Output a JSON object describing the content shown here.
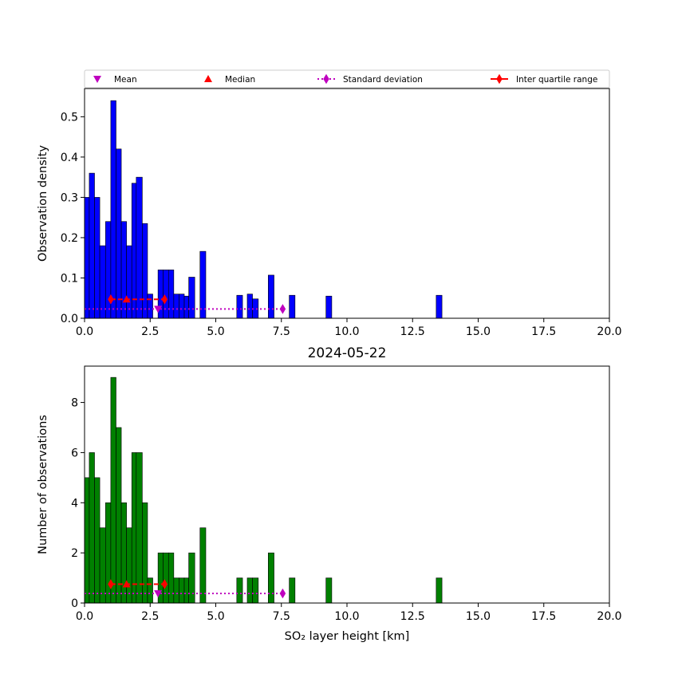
{
  "figure": {
    "title": "2024-05-22",
    "xlabel": "SO₂ layer height [km]"
  },
  "legend": [
    {
      "label": "Mean",
      "marker": "triangle-down",
      "color": "#bf00bf",
      "line": "none"
    },
    {
      "label": "Median",
      "marker": "triangle-up",
      "color": "#ff0000",
      "line": "none"
    },
    {
      "label": "Standard deviation",
      "marker": "diamond",
      "color": "#bf00bf",
      "line": "dotted"
    },
    {
      "label": "Inter quartile range",
      "marker": "diamond",
      "color": "#ff0000",
      "line": "solid"
    }
  ],
  "chart_data": [
    {
      "type": "bar",
      "name": "density-histogram",
      "ylabel": "Observation density",
      "xlim": [
        0,
        20
      ],
      "ylim": [
        0,
        0.57
      ],
      "xticks": [
        "0.0",
        "2.5",
        "5.0",
        "7.5",
        "10.0",
        "12.5",
        "15.0",
        "17.5",
        "20.0"
      ],
      "yticks": [
        "0.0",
        "0.1",
        "0.2",
        "0.3",
        "0.4",
        "0.5"
      ],
      "bar_color": "#0000ff",
      "bins": [
        {
          "x0": 0.0,
          "x1": 0.18,
          "value": 0.3
        },
        {
          "x0": 0.18,
          "x1": 0.38,
          "value": 0.36
        },
        {
          "x0": 0.38,
          "x1": 0.58,
          "value": 0.3
        },
        {
          "x0": 0.58,
          "x1": 0.8,
          "value": 0.18
        },
        {
          "x0": 0.8,
          "x1": 1.0,
          "value": 0.24
        },
        {
          "x0": 1.0,
          "x1": 1.2,
          "value": 0.54
        },
        {
          "x0": 1.2,
          "x1": 1.4,
          "value": 0.42
        },
        {
          "x0": 1.4,
          "x1": 1.6,
          "value": 0.24
        },
        {
          "x0": 1.6,
          "x1": 1.8,
          "value": 0.18
        },
        {
          "x0": 1.8,
          "x1": 1.97,
          "value": 0.335
        },
        {
          "x0": 1.97,
          "x1": 2.2,
          "value": 0.35
        },
        {
          "x0": 2.2,
          "x1": 2.4,
          "value": 0.235
        },
        {
          "x0": 2.4,
          "x1": 2.6,
          "value": 0.06
        },
        {
          "x0": 2.8,
          "x1": 3.0,
          "value": 0.12
        },
        {
          "x0": 3.0,
          "x1": 3.2,
          "value": 0.12
        },
        {
          "x0": 3.2,
          "x1": 3.4,
          "value": 0.12
        },
        {
          "x0": 3.4,
          "x1": 3.6,
          "value": 0.06
        },
        {
          "x0": 3.6,
          "x1": 3.8,
          "value": 0.06
        },
        {
          "x0": 3.8,
          "x1": 3.97,
          "value": 0.055
        },
        {
          "x0": 3.97,
          "x1": 4.2,
          "value": 0.102
        },
        {
          "x0": 4.4,
          "x1": 4.62,
          "value": 0.166
        },
        {
          "x0": 5.8,
          "x1": 6.02,
          "value": 0.057
        },
        {
          "x0": 6.2,
          "x1": 6.4,
          "value": 0.06
        },
        {
          "x0": 6.4,
          "x1": 6.62,
          "value": 0.048
        },
        {
          "x0": 7.0,
          "x1": 7.22,
          "value": 0.107
        },
        {
          "x0": 7.8,
          "x1": 8.02,
          "value": 0.057
        },
        {
          "x0": 9.2,
          "x1": 9.42,
          "value": 0.055
        },
        {
          "x0": 13.4,
          "x1": 13.62,
          "value": 0.057
        }
      ],
      "statistics": {
        "mean": {
          "x": 2.8,
          "y": 0.023
        },
        "median": {
          "x": 1.6,
          "y": 0.047
        },
        "std": {
          "x0": 0.0,
          "x1": 7.55,
          "y": 0.023
        },
        "iqr": {
          "x0": 1.0,
          "x1": 3.05,
          "y": 0.047
        }
      }
    },
    {
      "type": "bar",
      "name": "count-histogram",
      "ylabel": "Number of observations",
      "xlim": [
        0,
        20
      ],
      "ylim": [
        0,
        9.45
      ],
      "xticks": [
        "0.0",
        "2.5",
        "5.0",
        "7.5",
        "10.0",
        "12.5",
        "15.0",
        "17.5",
        "20.0"
      ],
      "yticks": [
        "0",
        "2",
        "4",
        "6",
        "8"
      ],
      "bar_color": "#008000",
      "bins": [
        {
          "x0": 0.0,
          "x1": 0.18,
          "value": 5
        },
        {
          "x0": 0.18,
          "x1": 0.38,
          "value": 6
        },
        {
          "x0": 0.38,
          "x1": 0.58,
          "value": 5
        },
        {
          "x0": 0.58,
          "x1": 0.8,
          "value": 3
        },
        {
          "x0": 0.8,
          "x1": 1.0,
          "value": 4
        },
        {
          "x0": 1.0,
          "x1": 1.2,
          "value": 9
        },
        {
          "x0": 1.2,
          "x1": 1.4,
          "value": 7
        },
        {
          "x0": 1.4,
          "x1": 1.6,
          "value": 4
        },
        {
          "x0": 1.6,
          "x1": 1.8,
          "value": 3
        },
        {
          "x0": 1.8,
          "x1": 1.97,
          "value": 6
        },
        {
          "x0": 1.97,
          "x1": 2.2,
          "value": 6
        },
        {
          "x0": 2.2,
          "x1": 2.4,
          "value": 4
        },
        {
          "x0": 2.4,
          "x1": 2.6,
          "value": 1
        },
        {
          "x0": 2.8,
          "x1": 3.0,
          "value": 2
        },
        {
          "x0": 3.0,
          "x1": 3.2,
          "value": 2
        },
        {
          "x0": 3.2,
          "x1": 3.4,
          "value": 2
        },
        {
          "x0": 3.4,
          "x1": 3.6,
          "value": 1
        },
        {
          "x0": 3.6,
          "x1": 3.8,
          "value": 1
        },
        {
          "x0": 3.8,
          "x1": 3.97,
          "value": 1
        },
        {
          "x0": 3.97,
          "x1": 4.2,
          "value": 2
        },
        {
          "x0": 4.4,
          "x1": 4.62,
          "value": 3
        },
        {
          "x0": 5.8,
          "x1": 6.02,
          "value": 1
        },
        {
          "x0": 6.2,
          "x1": 6.4,
          "value": 1
        },
        {
          "x0": 6.4,
          "x1": 6.62,
          "value": 1
        },
        {
          "x0": 7.0,
          "x1": 7.22,
          "value": 2
        },
        {
          "x0": 7.8,
          "x1": 8.02,
          "value": 1
        },
        {
          "x0": 9.2,
          "x1": 9.42,
          "value": 1
        },
        {
          "x0": 13.4,
          "x1": 13.62,
          "value": 1
        }
      ],
      "statistics": {
        "mean": {
          "x": 2.8,
          "y": 0.38
        },
        "median": {
          "x": 1.6,
          "y": 0.75
        },
        "std": {
          "x0": 0.0,
          "x1": 7.55,
          "y": 0.38
        },
        "iqr": {
          "x0": 1.0,
          "x1": 3.05,
          "y": 0.75
        }
      }
    }
  ]
}
